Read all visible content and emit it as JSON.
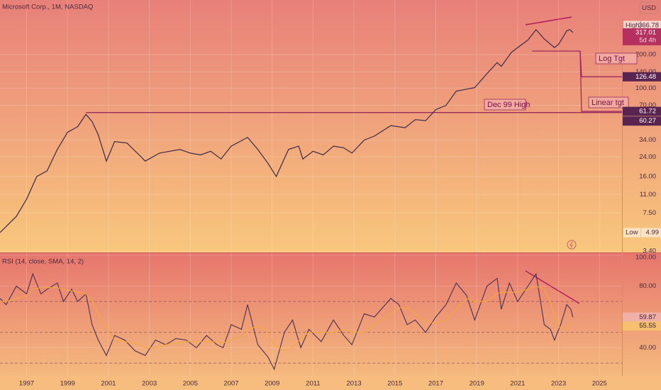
{
  "chart_data": [
    {
      "type": "line",
      "title": "Microsoft Corp., 1M, NASDAQ",
      "currency": "USD",
      "log_scale": true,
      "grid": true,
      "color": "#3a2a45",
      "x": [
        1995.7,
        1996.5,
        1997,
        1997.5,
        1998,
        1998.5,
        1999,
        1999.5,
        1999.9,
        2000.2,
        2000.5,
        2000.9,
        2001.3,
        2001.9,
        2002.5,
        2002.8,
        2003.5,
        2004,
        2004.5,
        2005,
        2005.5,
        2006,
        2006.5,
        2007,
        2007.8,
        2008.3,
        2008.8,
        2009.2,
        2009.8,
        2010.3,
        2010.5,
        2011,
        2011.5,
        2012,
        2012.5,
        2012.9,
        2013.5,
        2014,
        2014.8,
        2015.5,
        2016,
        2016.5,
        2017,
        2017.5,
        2018,
        2018.9,
        2019.5,
        2020,
        2020.2,
        2020.7,
        2021,
        2021.5,
        2021.9,
        2022.3,
        2022.8,
        2023,
        2023.4,
        2023.55,
        2023.7
      ],
      "values": [
        5,
        7,
        10,
        16,
        18,
        28,
        40,
        45,
        58,
        50,
        38,
        22,
        33,
        32,
        25,
        22,
        26,
        27,
        28,
        26,
        25,
        27,
        23,
        30,
        36,
        28,
        21,
        16,
        28,
        30,
        23,
        27,
        25,
        30,
        29,
        26,
        34,
        37,
        46,
        44,
        52,
        51,
        64,
        70,
        94,
        101,
        135,
        170,
        157,
        210,
        232,
        271,
        336,
        277,
        232,
        248,
        328,
        337,
        317.01
      ],
      "countdown": "5d 4h",
      "high": {
        "label": "High",
        "value": 366.78
      },
      "low": {
        "label": "Low",
        "value": 4.99
      },
      "annotations": [
        {
          "text": "Dec 99 High",
          "value": 60.27
        },
        {
          "text": "Log Tgt",
          "value": 126.48
        },
        {
          "text": "Linear tgt",
          "value": 61.72
        }
      ],
      "xlim": [
        1995.7,
        2026.1
      ],
      "ylim": [
        3.31,
        622
      ],
      "yticks": [
        {
          "value": 200,
          "label": "200.00"
        },
        {
          "value": 140,
          "label": "140.00"
        },
        {
          "value": 100,
          "label": "100.00"
        },
        {
          "value": 70,
          "label": "70.00"
        },
        {
          "value": 34,
          "label": "34.00"
        },
        {
          "value": 24,
          "label": "24.00"
        },
        {
          "value": 16,
          "label": "16.00"
        },
        {
          "value": 11,
          "label": "11.00"
        },
        {
          "value": 7.5,
          "label": "7.50"
        },
        {
          "value": 3.4,
          "label": "3.40"
        }
      ]
    },
    {
      "type": "line",
      "title": "RSI (14, close, SMA, 14, 2)",
      "grid": true,
      "x": [
        1995.7,
        1996,
        1996.5,
        1997,
        1997.3,
        1997.7,
        1998,
        1998.5,
        1998.8,
        1999.2,
        1999.5,
        1999.9,
        2000.2,
        2000.5,
        2000.9,
        2001.3,
        2001.8,
        2002.3,
        2002.8,
        2003.3,
        2003.8,
        2004.3,
        2004.8,
        2005.3,
        2005.8,
        2006.3,
        2006.6,
        2007,
        2007.5,
        2007.8,
        2008.3,
        2008.8,
        2009.1,
        2009.6,
        2010,
        2010.4,
        2010.8,
        2011.4,
        2012,
        2012.5,
        2012.9,
        2013.5,
        2014,
        2014.8,
        2015.2,
        2015.6,
        2016,
        2016.5,
        2017,
        2017.5,
        2018,
        2018.5,
        2018.9,
        2019.5,
        2020,
        2020.2,
        2020.6,
        2021,
        2021.5,
        2021.9,
        2022.3,
        2022.6,
        2022.8,
        2023.1,
        2023.4,
        2023.6,
        2023.7
      ],
      "series": [
        {
          "color": "#4a2f52",
          "values": [
            72,
            68,
            80,
            75,
            88,
            75,
            78,
            82,
            70,
            78,
            70,
            75,
            55,
            45,
            35,
            48,
            45,
            38,
            35,
            45,
            42,
            46,
            45,
            40,
            48,
            42,
            40,
            55,
            52,
            68,
            42,
            34,
            26,
            50,
            58,
            40,
            52,
            44,
            58,
            48,
            42,
            62,
            60,
            72,
            68,
            55,
            58,
            50,
            60,
            68,
            82,
            74,
            58,
            80,
            85,
            65,
            82,
            70,
            80,
            88,
            55,
            52,
            45,
            55,
            68,
            65,
            59.87
          ]
        },
        {
          "color": "#f2a93b",
          "values": [
            70,
            70,
            72,
            74,
            78,
            79,
            79,
            79,
            78,
            77,
            76,
            75,
            70,
            62,
            52,
            45,
            44,
            43,
            40,
            40,
            42,
            43,
            44,
            44,
            44,
            44,
            43,
            45,
            48,
            52,
            54,
            50,
            42,
            38,
            40,
            46,
            50,
            50,
            50,
            52,
            50,
            50,
            55,
            62,
            66,
            66,
            62,
            57,
            56,
            58,
            65,
            72,
            70,
            70,
            75,
            76,
            76,
            76,
            78,
            80,
            78,
            70,
            60,
            52,
            52,
            56,
            55.55
          ]
        }
      ],
      "levels": [
        70,
        50,
        30
      ],
      "xlim": [
        1995.7,
        2026.1
      ],
      "ylim": [
        21.8,
        101.4
      ],
      "yticks": [
        {
          "value": 100,
          "label": "100.00"
        },
        {
          "value": 80,
          "label": "80.00"
        },
        {
          "value": 40,
          "label": "40.00"
        }
      ],
      "xticks": [
        1997,
        1999,
        2001,
        2003,
        2005,
        2007,
        2009,
        2011,
        2013,
        2015,
        2017,
        2019,
        2021,
        2023,
        2025
      ]
    }
  ]
}
